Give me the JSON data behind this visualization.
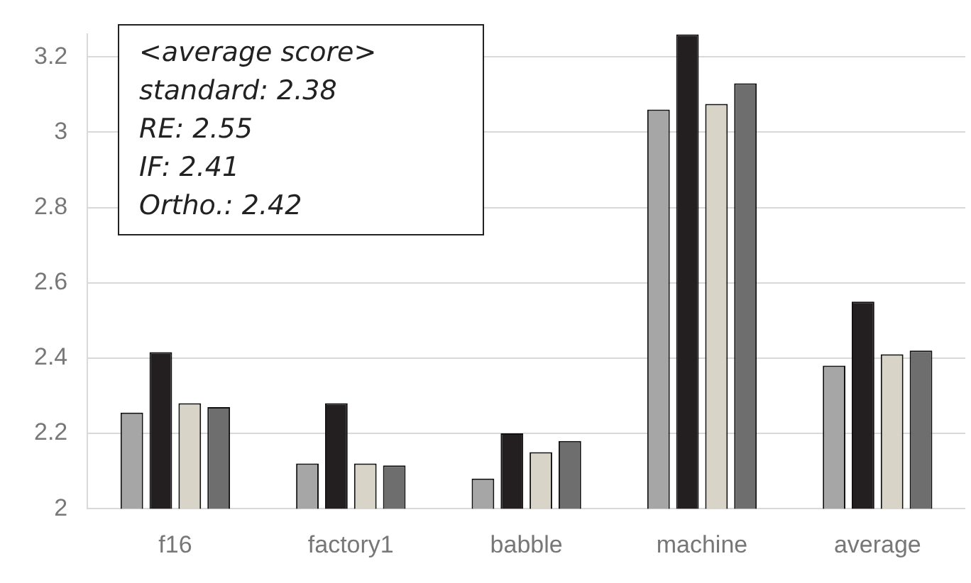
{
  "chart_data": {
    "type": "bar",
    "categories": [
      "f16",
      "factory1",
      "babble",
      "machine",
      "average"
    ],
    "series": [
      {
        "color": "#a6a6a6",
        "values": [
          2.255,
          2.12,
          2.08,
          3.06,
          2.38
        ]
      },
      {
        "color": "#231f20",
        "values": [
          2.416,
          2.28,
          2.2,
          3.26,
          2.55
        ]
      },
      {
        "color": "#d8d4c8",
        "values": [
          2.28,
          2.12,
          2.15,
          3.075,
          2.41
        ]
      },
      {
        "color": "#6e6e6e",
        "values": [
          2.27,
          2.115,
          2.18,
          3.13,
          2.42
        ]
      }
    ],
    "ylim": [
      2,
      3.26
    ],
    "yticks": [
      2,
      2.2,
      2.4,
      2.6,
      2.8,
      3,
      3.2
    ],
    "grid": "y",
    "legend": false,
    "annotations": [
      "<average score>",
      "standard: 2.38",
      "RE: 2.55",
      "IF: 2.41",
      "Ortho.: 2.42"
    ]
  }
}
